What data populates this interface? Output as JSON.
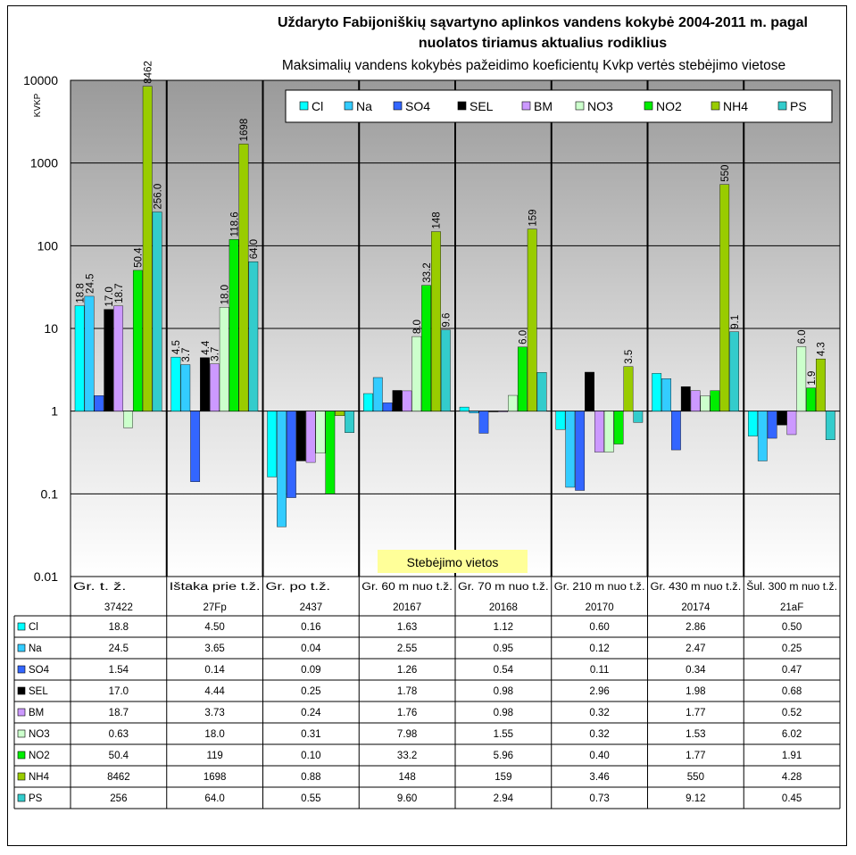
{
  "chart_data": {
    "type": "bar",
    "title_line1": "Uždaryto Fabijoniškių sąvartyno aplinkos vandens kokybė 2004-2011 m. pagal",
    "title_line2": "nuolatos tiriamus aktualius rodiklius",
    "subtitle": "Maksimalių vandens kokybės pažeidimo koeficientų Kvkp vertės stebėjimo vietose",
    "ylabel": "KVKP",
    "xlabel": "Stebėjimo vietos",
    "yscale": "log",
    "ylim": [
      0.01,
      10000
    ],
    "yticks": [
      "0.01",
      "0.1",
      "1",
      "10",
      "100",
      "1000",
      "10000"
    ],
    "baseline": 1,
    "legend_position": "top-right",
    "categories": [
      "Gr. t. ž.",
      "Ištaka prie t.ž.",
      "Gr. po t.ž.",
      "Gr. 60 m nuo t.ž.",
      "Gr. 70 m nuo t.ž.",
      "Gr. 210 m nuo t.ž.",
      "Gr. 430 m nuo t.ž.",
      "Šul. 300 m nuo t.ž."
    ],
    "codes": [
      "37422",
      "27Fp",
      "2437",
      "20167",
      "20168",
      "20170",
      "20174",
      "21aF"
    ],
    "series": [
      {
        "name": "Cl",
        "color": "#00FFFF",
        "values": [
          18.8,
          4.5,
          0.16,
          1.63,
          1.12,
          0.6,
          2.86,
          0.5
        ],
        "labels": [
          "18.8",
          "4.5",
          "",
          "",
          "",
          "",
          "",
          ""
        ]
      },
      {
        "name": "Na",
        "color": "#33CCFF",
        "values": [
          24.5,
          3.65,
          0.04,
          2.55,
          0.95,
          0.12,
          2.47,
          0.25
        ],
        "labels": [
          "24.5",
          "3.7",
          "",
          "",
          "",
          "",
          "",
          ""
        ]
      },
      {
        "name": "SO4",
        "color": "#3366FF",
        "values": [
          1.54,
          0.14,
          0.09,
          1.26,
          0.54,
          0.11,
          0.34,
          0.47
        ],
        "labels": [
          "",
          "",
          "",
          "",
          "",
          "",
          "",
          ""
        ]
      },
      {
        "name": "SEL",
        "color": "#000000",
        "values": [
          17.0,
          4.44,
          0.25,
          1.78,
          0.98,
          2.96,
          1.98,
          0.68
        ],
        "labels": [
          "17.0",
          "4.4",
          "",
          "",
          "",
          "",
          "",
          ""
        ]
      },
      {
        "name": "BM",
        "color": "#CC99FF",
        "values": [
          18.7,
          3.73,
          0.24,
          1.76,
          0.98,
          0.32,
          1.77,
          0.52
        ],
        "labels": [
          "18.7",
          "3.7",
          "",
          "",
          "",
          "",
          "",
          ""
        ]
      },
      {
        "name": "NO3",
        "color": "#CCFFCC",
        "values": [
          0.63,
          18.0,
          0.31,
          7.98,
          1.55,
          0.32,
          1.53,
          6.02
        ],
        "labels": [
          "",
          "18.0",
          "",
          "8.0",
          "",
          "",
          "",
          "6.0"
        ]
      },
      {
        "name": "NO2",
        "color": "#00EE00",
        "values": [
          50.4,
          119,
          0.1,
          33.2,
          5.96,
          0.4,
          1.77,
          1.91
        ],
        "labels": [
          "50.4",
          "118.6",
          "",
          "33.2",
          "6.0",
          "",
          "",
          "1.9"
        ]
      },
      {
        "name": "NH4",
        "color": "#99CC00",
        "values": [
          8462,
          1698,
          0.88,
          148,
          159,
          3.46,
          550,
          4.28
        ],
        "labels": [
          "8462",
          "1698",
          "",
          "148",
          "159",
          "3.5",
          "550",
          "4.3"
        ]
      },
      {
        "name": "PS",
        "color": "#33CCCC",
        "values": [
          256,
          64.0,
          0.55,
          9.6,
          2.94,
          0.73,
          9.12,
          0.45
        ],
        "labels": [
          "256.0",
          "64.0",
          "",
          "9.6",
          "",
          "",
          "9.1",
          ""
        ]
      }
    ],
    "table": {
      "rows": [
        {
          "name": "Cl",
          "cells": [
            "18.8",
            "4.50",
            "0.16",
            "1.63",
            "1.12",
            "0.60",
            "2.86",
            "0.50"
          ]
        },
        {
          "name": "Na",
          "cells": [
            "24.5",
            "3.65",
            "0.04",
            "2.55",
            "0.95",
            "0.12",
            "2.47",
            "0.25"
          ]
        },
        {
          "name": "SO4",
          "cells": [
            "1.54",
            "0.14",
            "0.09",
            "1.26",
            "0.54",
            "0.11",
            "0.34",
            "0.47"
          ]
        },
        {
          "name": "SEL",
          "cells": [
            "17.0",
            "4.44",
            "0.25",
            "1.78",
            "0.98",
            "2.96",
            "1.98",
            "0.68"
          ]
        },
        {
          "name": "BM",
          "cells": [
            "18.7",
            "3.73",
            "0.24",
            "1.76",
            "0.98",
            "0.32",
            "1.77",
            "0.52"
          ]
        },
        {
          "name": "NO3",
          "cells": [
            "0.63",
            "18.0",
            "0.31",
            "7.98",
            "1.55",
            "0.32",
            "1.53",
            "6.02"
          ]
        },
        {
          "name": "NO2",
          "cells": [
            "50.4",
            "119",
            "0.10",
            "33.2",
            "5.96",
            "0.40",
            "1.77",
            "1.91"
          ]
        },
        {
          "name": "NH4",
          "cells": [
            "8462",
            "1698",
            "0.88",
            "148",
            "159",
            "3.46",
            "550",
            "4.28"
          ]
        },
        {
          "name": "PS",
          "cells": [
            "256",
            "64.0",
            "0.55",
            "9.60",
            "2.94",
            "0.73",
            "9.12",
            "0.45"
          ]
        }
      ]
    }
  }
}
